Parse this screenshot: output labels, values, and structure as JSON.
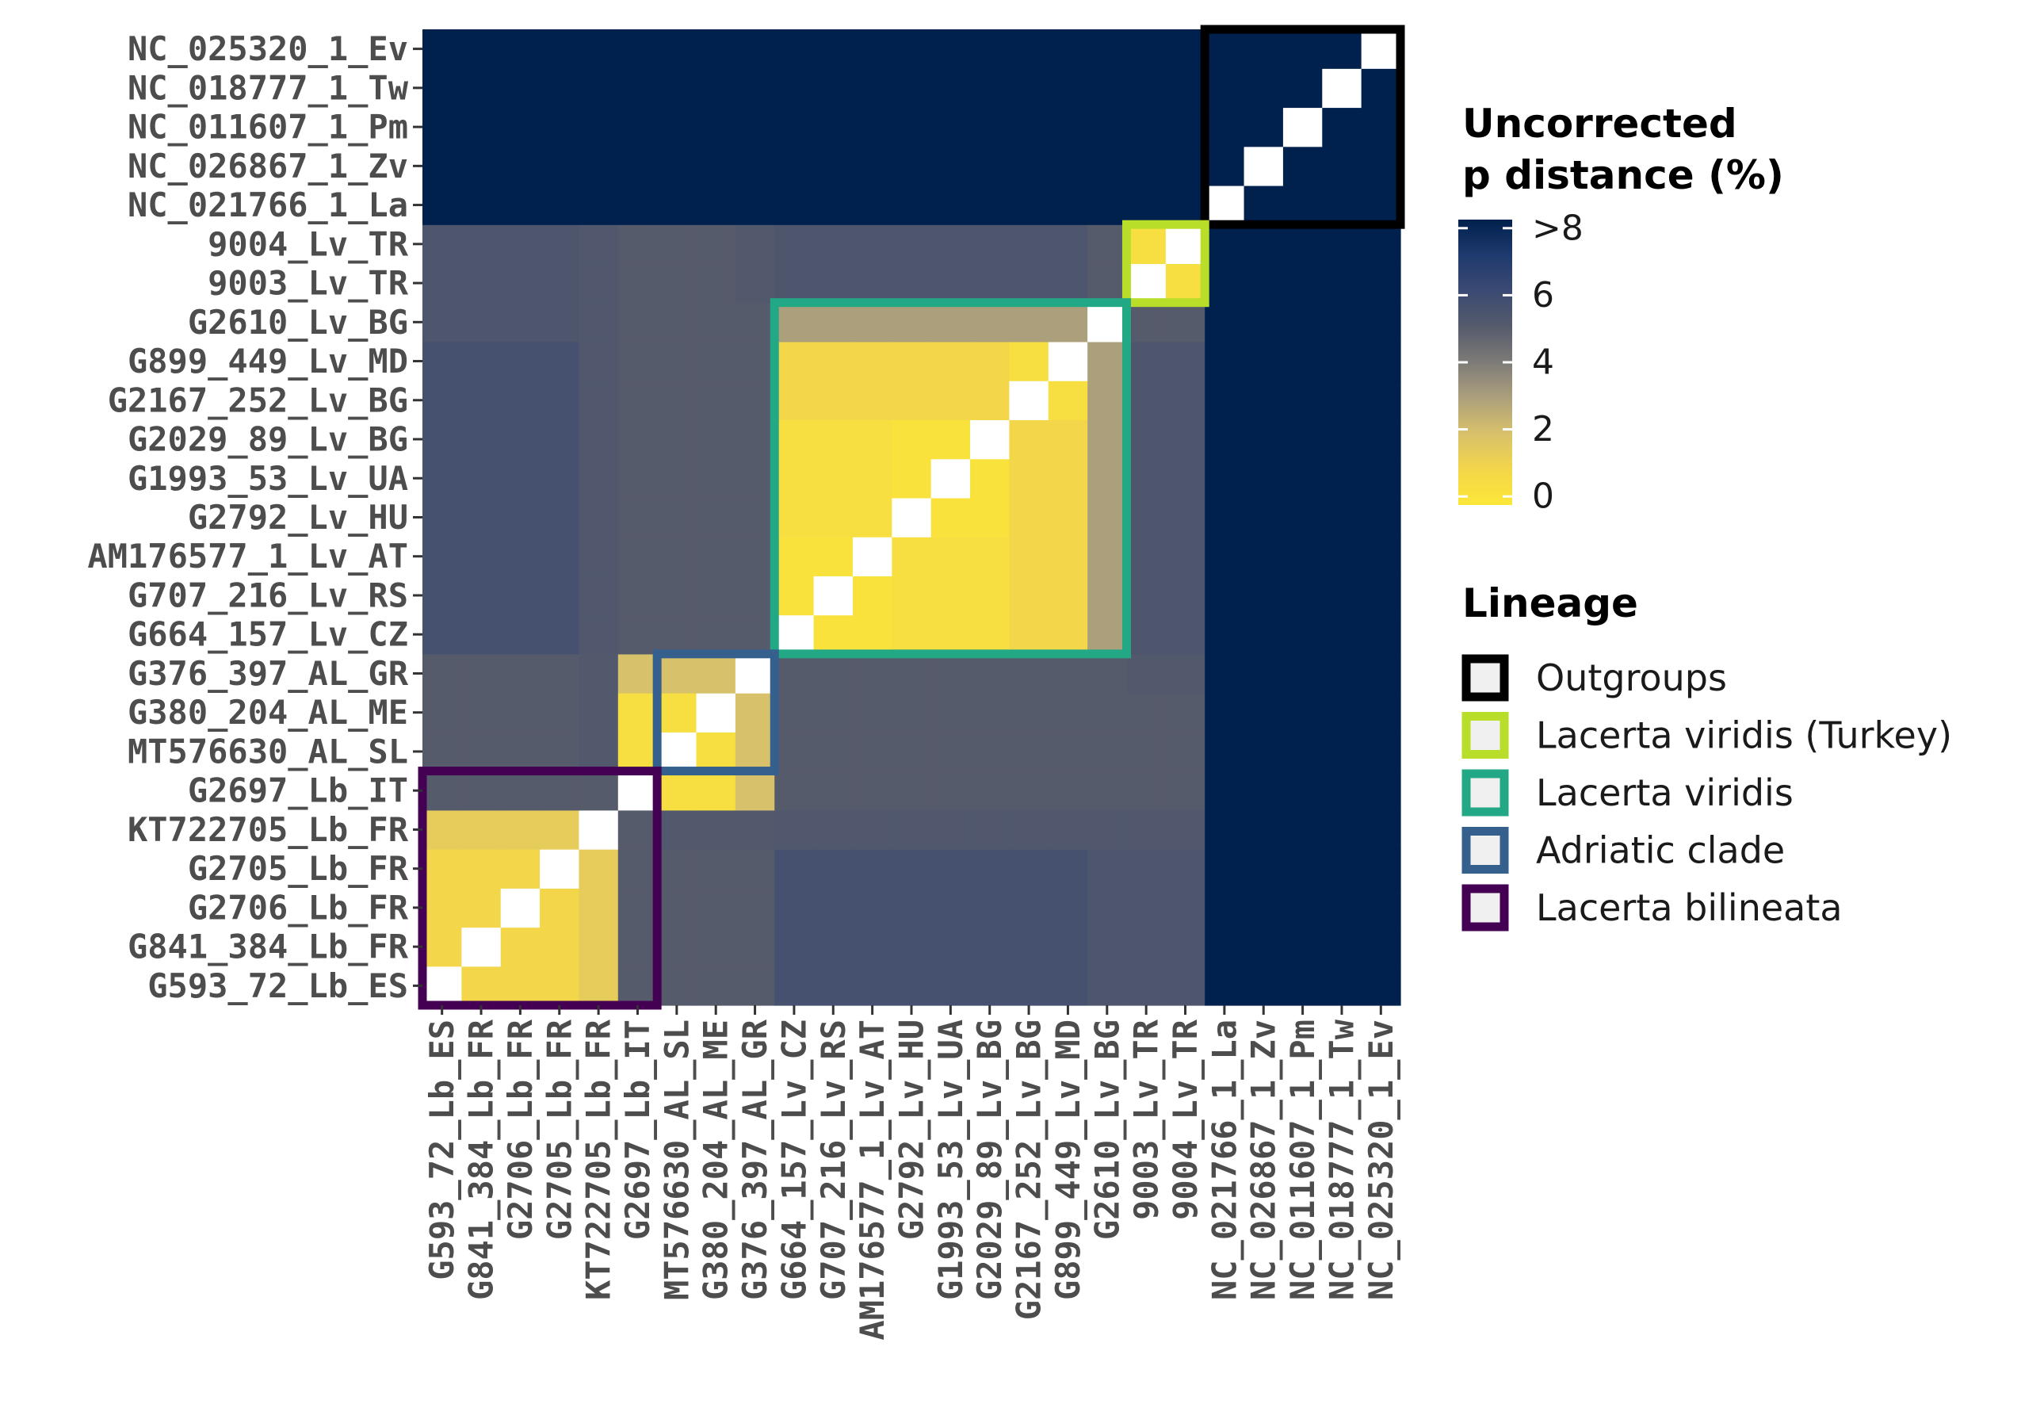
{
  "chart_data": {
    "type": "heatmap",
    "title": "",
    "xlabel": "",
    "ylabel": "",
    "taxa": [
      "G593_72_Lb_ES",
      "G841_384_Lb_FR",
      "G2706_Lb_FR",
      "G2705_Lb_FR",
      "KT722705_Lb_FR",
      "G2697_Lb_IT",
      "MT576630_AL_SL",
      "G380_204_AL_ME",
      "G376_397_AL_GR",
      "G664_157_Lv_CZ",
      "G707_216_Lv_RS",
      "AM176577_1_Lv_AT",
      "G2792_Lv_HU",
      "G1993_53_Lv_UA",
      "G2029_89_Lv_BG",
      "G2167_252_Lv_BG",
      "G899_449_Lv_MD",
      "G2610_Lv_BG",
      "9003_Lv_TR",
      "9004_Lv_TR",
      "NC_021766_1_La",
      "NC_026867_1_Zv",
      "NC_011607_1_Pm",
      "NC_018777_1_Tw",
      "NC_025320_1_Ev"
    ],
    "row_order": "bottom-to-top",
    "column_order": "left-to-right",
    "matrix": [
      [
        null,
        1.0,
        1.0,
        1.0,
        1.5,
        5.0,
        5.0,
        5.0,
        5.0,
        5.6,
        5.6,
        5.6,
        5.6,
        5.6,
        5.6,
        5.6,
        5.6,
        5.3,
        5.3,
        5.3,
        9,
        9,
        9,
        9,
        9
      ],
      [
        1.0,
        null,
        1.0,
        1.0,
        1.5,
        5.0,
        5.0,
        5.0,
        5.0,
        5.6,
        5.6,
        5.6,
        5.6,
        5.6,
        5.6,
        5.6,
        5.6,
        5.3,
        5.3,
        5.3,
        9,
        9,
        9,
        9,
        9
      ],
      [
        1.0,
        1.0,
        null,
        1.0,
        1.5,
        5.0,
        5.0,
        5.0,
        5.0,
        5.6,
        5.6,
        5.6,
        5.6,
        5.6,
        5.6,
        5.6,
        5.6,
        5.3,
        5.3,
        5.3,
        9,
        9,
        9,
        9,
        9
      ],
      [
        1.0,
        1.0,
        1.0,
        null,
        1.5,
        5.0,
        5.0,
        5.0,
        5.0,
        5.6,
        5.6,
        5.6,
        5.6,
        5.6,
        5.6,
        5.6,
        5.6,
        5.3,
        5.3,
        5.3,
        9,
        9,
        9,
        9,
        9
      ],
      [
        1.5,
        1.5,
        1.5,
        1.5,
        null,
        5.0,
        5.1,
        5.1,
        5.1,
        5.2,
        5.2,
        5.2,
        5.2,
        5.2,
        5.2,
        5.2,
        5.2,
        5.2,
        5.2,
        5.2,
        9,
        9,
        9,
        9,
        9
      ],
      [
        5.0,
        5.0,
        5.0,
        5.0,
        5.0,
        null,
        0.5,
        0.5,
        2.0,
        5.0,
        5.0,
        5.0,
        5.0,
        5.0,
        5.0,
        5.0,
        5.0,
        5.0,
        5.0,
        5.0,
        9,
        9,
        9,
        9,
        9
      ],
      [
        5.0,
        5.0,
        5.0,
        5.0,
        5.1,
        0.5,
        null,
        0.5,
        2.0,
        5.0,
        5.0,
        5.0,
        5.0,
        5.0,
        5.0,
        5.0,
        5.0,
        5.0,
        5.0,
        5.0,
        9,
        9,
        9,
        9,
        9
      ],
      [
        5.0,
        5.0,
        5.0,
        5.0,
        5.1,
        0.5,
        0.5,
        null,
        2.0,
        5.0,
        5.0,
        5.0,
        5.0,
        5.0,
        5.0,
        5.0,
        5.0,
        5.0,
        5.0,
        5.0,
        9,
        9,
        9,
        9,
        9
      ],
      [
        5.0,
        5.0,
        5.0,
        5.0,
        5.1,
        2.0,
        2.0,
        2.0,
        null,
        5.0,
        5.0,
        5.0,
        5.0,
        5.0,
        5.0,
        5.0,
        5.0,
        5.0,
        5.1,
        5.1,
        9,
        9,
        9,
        9,
        9
      ],
      [
        5.6,
        5.6,
        5.6,
        5.6,
        5.2,
        5.0,
        5.0,
        5.0,
        5.0,
        null,
        0.3,
        0.3,
        0.5,
        0.5,
        0.5,
        1.0,
        1.0,
        3.0,
        5.3,
        5.3,
        9,
        9,
        9,
        9,
        9
      ],
      [
        5.6,
        5.6,
        5.6,
        5.6,
        5.2,
        5.0,
        5.0,
        5.0,
        5.0,
        0.3,
        null,
        0.3,
        0.5,
        0.5,
        0.5,
        1.0,
        1.0,
        3.0,
        5.3,
        5.3,
        9,
        9,
        9,
        9,
        9
      ],
      [
        5.6,
        5.6,
        5.6,
        5.6,
        5.2,
        5.0,
        5.0,
        5.0,
        5.0,
        0.3,
        0.3,
        null,
        0.5,
        0.5,
        0.5,
        1.0,
        1.0,
        3.0,
        5.3,
        5.3,
        9,
        9,
        9,
        9,
        9
      ],
      [
        5.6,
        5.6,
        5.6,
        5.6,
        5.2,
        5.0,
        5.0,
        5.0,
        5.0,
        0.5,
        0.5,
        0.5,
        null,
        0.3,
        0.3,
        1.0,
        1.0,
        3.0,
        5.3,
        5.3,
        9,
        9,
        9,
        9,
        9
      ],
      [
        5.6,
        5.6,
        5.6,
        5.6,
        5.2,
        5.0,
        5.0,
        5.0,
        5.0,
        0.5,
        0.5,
        0.5,
        0.3,
        null,
        0.3,
        1.0,
        1.0,
        3.0,
        5.3,
        5.3,
        9,
        9,
        9,
        9,
        9
      ],
      [
        5.6,
        5.6,
        5.6,
        5.6,
        5.2,
        5.0,
        5.0,
        5.0,
        5.0,
        0.5,
        0.5,
        0.5,
        0.3,
        0.3,
        null,
        1.0,
        1.0,
        3.0,
        5.3,
        5.3,
        9,
        9,
        9,
        9,
        9
      ],
      [
        5.6,
        5.6,
        5.6,
        5.6,
        5.2,
        5.0,
        5.0,
        5.0,
        5.0,
        1.0,
        1.0,
        1.0,
        1.0,
        1.0,
        1.0,
        null,
        0.5,
        3.0,
        5.3,
        5.3,
        9,
        9,
        9,
        9,
        9
      ],
      [
        5.6,
        5.6,
        5.6,
        5.6,
        5.2,
        5.0,
        5.0,
        5.0,
        5.0,
        1.0,
        1.0,
        1.0,
        1.0,
        1.0,
        1.0,
        0.5,
        null,
        3.0,
        5.3,
        5.3,
        9,
        9,
        9,
        9,
        9
      ],
      [
        5.3,
        5.3,
        5.3,
        5.3,
        5.2,
        5.0,
        5.0,
        5.0,
        5.0,
        3.0,
        3.0,
        3.0,
        3.0,
        3.0,
        3.0,
        3.0,
        3.0,
        null,
        5.0,
        5.0,
        9,
        9,
        9,
        9,
        9
      ],
      [
        5.3,
        5.3,
        5.3,
        5.3,
        5.2,
        5.0,
        5.0,
        5.0,
        5.1,
        5.3,
        5.3,
        5.3,
        5.3,
        5.3,
        5.3,
        5.3,
        5.3,
        5.0,
        null,
        0.5,
        9,
        9,
        9,
        9,
        9
      ],
      [
        5.3,
        5.3,
        5.3,
        5.3,
        5.2,
        5.0,
        5.0,
        5.0,
        5.1,
        5.3,
        5.3,
        5.3,
        5.3,
        5.3,
        5.3,
        5.3,
        5.3,
        5.0,
        0.5,
        null,
        9,
        9,
        9,
        9,
        9
      ],
      [
        9,
        9,
        9,
        9,
        9,
        9,
        9,
        9,
        9,
        9,
        9,
        9,
        9,
        9,
        9,
        9,
        9,
        9,
        9,
        9,
        null,
        9,
        9,
        9,
        9
      ],
      [
        9,
        9,
        9,
        9,
        9,
        9,
        9,
        9,
        9,
        9,
        9,
        9,
        9,
        9,
        9,
        9,
        9,
        9,
        9,
        9,
        9,
        null,
        9,
        9,
        9
      ],
      [
        9,
        9,
        9,
        9,
        9,
        9,
        9,
        9,
        9,
        9,
        9,
        9,
        9,
        9,
        9,
        9,
        9,
        9,
        9,
        9,
        9,
        9,
        null,
        9,
        9
      ],
      [
        9,
        9,
        9,
        9,
        9,
        9,
        9,
        9,
        9,
        9,
        9,
        9,
        9,
        9,
        9,
        9,
        9,
        9,
        9,
        9,
        9,
        9,
        9,
        null,
        9
      ],
      [
        9,
        9,
        9,
        9,
        9,
        9,
        9,
        9,
        9,
        9,
        9,
        9,
        9,
        9,
        9,
        9,
        9,
        9,
        9,
        9,
        9,
        9,
        9,
        9,
        null
      ]
    ],
    "color_scale": {
      "title_lines": [
        "Uncorrected",
        "p distance (%)"
      ],
      "min": 0,
      "max": 8,
      "breaks": [
        0,
        2,
        4,
        6,
        8
      ],
      "break_labels": [
        "0",
        "2",
        "4",
        "6",
        ">8"
      ],
      "stops": [
        {
          "value": 0,
          "color": "#fde738"
        },
        {
          "value": 1,
          "color": "#f3d64a"
        },
        {
          "value": 2,
          "color": "#d8c16b"
        },
        {
          "value": 3,
          "color": "#aca07c"
        },
        {
          "value": 4,
          "color": "#7d7b78"
        },
        {
          "value": 5,
          "color": "#565b6c"
        },
        {
          "value": 6,
          "color": "#3b4a72"
        },
        {
          "value": 7,
          "color": "#1f3a6e"
        },
        {
          "value": 8,
          "color": "#00204d"
        }
      ],
      "diagonal_color": "#ffffff"
    },
    "lineages": {
      "title": "Lineage",
      "items": [
        {
          "label": "Outgroups",
          "color": "#000000",
          "from": "NC_021766_1_La",
          "to": "NC_025320_1_Ev"
        },
        {
          "label": "Lacerta viridis (Turkey)",
          "color": "#b8de29",
          "from": "9003_Lv_TR",
          "to": "9004_Lv_TR"
        },
        {
          "label": "Lacerta viridis",
          "color": "#22a884",
          "from": "G664_157_Lv_CZ",
          "to": "G2610_Lv_BG"
        },
        {
          "label": "Adriatic clade",
          "color": "#355f8d",
          "from": "MT576630_AL_SL",
          "to": "G376_397_AL_GR"
        },
        {
          "label": "Lacerta bilineata",
          "color": "#440154",
          "from": "G593_72_Lb_ES",
          "to": "G2697_Lb_IT"
        }
      ],
      "legend_key_fill": "#f0f0f0"
    },
    "legend_position": "right"
  }
}
